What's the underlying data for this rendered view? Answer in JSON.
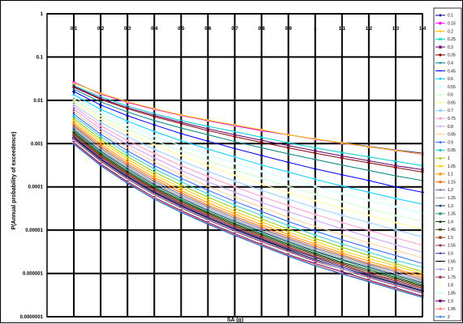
{
  "chart_data": {
    "type": "line",
    "xlabel": "SA (g)",
    "ylabel": "P(Annual probability of exceedence)",
    "x_scale": "linear",
    "y_scale": "log",
    "xlim": [
      0,
      1.4
    ],
    "ylim": [
      1e-07,
      1
    ],
    "x_ticks": [
      0.1,
      0.2,
      0.3,
      0.4,
      0.5,
      0.6,
      0.7,
      0.8,
      0.9,
      1,
      1.1,
      1.2,
      1.3,
      1.4
    ],
    "x_tick_labels": [
      "0.1",
      "0.2",
      "0.3",
      "0.4",
      "0.5",
      "0.6",
      "0.7",
      "0.8",
      "0.9",
      "1",
      "1.1",
      "1.2",
      "1.3",
      "1.4"
    ],
    "y_ticks": [
      1,
      0.1,
      0.01,
      0.001,
      0.0001,
      1e-05,
      1e-06,
      1e-07
    ],
    "y_tick_labels": [
      "1",
      "0.1",
      "0.01",
      "0.001",
      "0.0001",
      "0.00001",
      "0.000001",
      "0.0000001"
    ],
    "grid": true,
    "legend_position": "right",
    "x": [
      0.1,
      0.2,
      0.3,
      0.4,
      0.5,
      0.6,
      0.7,
      0.8,
      0.9,
      1.0,
      1.1,
      1.2,
      1.3,
      1.4
    ],
    "series": [
      {
        "name": "0.1",
        "color": "#000080",
        "marker": "diamond",
        "values": [
          0.026,
          0.014,
          0.009,
          0.0063,
          0.0045,
          0.0034,
          0.0026,
          0.002,
          0.0016,
          0.00128,
          0.00104,
          0.00086,
          0.00071,
          0.0006
        ]
      },
      {
        "name": "0.15",
        "color": "#ff00ff",
        "marker": "square",
        "values": [
          0.026,
          0.014,
          0.009,
          0.0062,
          0.0045,
          0.0034,
          0.0026,
          0.002,
          0.0016,
          0.00126,
          0.00102,
          0.00084,
          0.00069,
          0.00057
        ]
      },
      {
        "name": "0.2",
        "color": "#ffcc00",
        "marker": "triangle",
        "values": [
          0.025,
          0.0145,
          0.0093,
          0.0064,
          0.0046,
          0.0035,
          0.0027,
          0.0021,
          0.0016,
          0.00129,
          0.00104,
          0.00085,
          0.0007,
          0.00058
        ]
      },
      {
        "name": "0.25",
        "color": "#00cccc",
        "marker": "x",
        "values": [
          0.022,
          0.012,
          0.0074,
          0.0049,
          0.0034,
          0.0025,
          0.0019,
          0.0014,
          0.00105,
          0.0008,
          0.00062,
          0.00049,
          0.00039,
          0.00031
        ]
      },
      {
        "name": "0.3",
        "color": "#660066",
        "marker": "star",
        "values": [
          0.021,
          0.011,
          0.0068,
          0.0045,
          0.0031,
          0.0022,
          0.0016,
          0.0012,
          0.0009,
          0.00068,
          0.00052,
          0.0004,
          0.00031,
          0.00025
        ]
      },
      {
        "name": "0.35",
        "color": "#800000",
        "marker": "circle",
        "values": [
          0.02,
          0.0105,
          0.0064,
          0.0042,
          0.0029,
          0.002,
          0.00145,
          0.00107,
          0.0008,
          0.0006,
          0.00046,
          0.00036,
          0.00028,
          0.00022
        ]
      },
      {
        "name": "0.4",
        "color": "#008080",
        "marker": "plus",
        "values": [
          0.018,
          0.0092,
          0.0054,
          0.0034,
          0.0023,
          0.0016,
          0.00112,
          0.0008,
          0.00058,
          0.00043,
          0.00032,
          0.00024,
          0.00018,
          0.00014
        ]
      },
      {
        "name": "0.45",
        "color": "#0000ff",
        "marker": "dash",
        "values": [
          0.016,
          0.0078,
          0.0044,
          0.0027,
          0.0017,
          0.00114,
          0.00077,
          0.00053,
          0.00037,
          0.00026,
          0.00019,
          0.00014,
          0.0001,
          7.5e-05
        ]
      },
      {
        "name": "0.5",
        "color": "#00ccff",
        "marker": "diamond",
        "values": [
          0.0135,
          0.0062,
          0.0033,
          0.0019,
          0.00117,
          0.00075,
          0.00049,
          0.00032,
          0.00022,
          0.00015,
          0.000105,
          7.5e-05,
          5.4e-05,
          4e-05
        ]
      },
      {
        "name": "0.55",
        "color": "#ccffff",
        "marker": "square",
        "values": [
          0.012,
          0.0052,
          0.0027,
          0.0015,
          0.00089,
          0.00055,
          0.00035,
          0.00023,
          0.000152,
          0.000102,
          7e-05,
          4.9e-05,
          3.5e-05,
          2.5e-05
        ]
      },
      {
        "name": "0.6",
        "color": "#ccffcc",
        "marker": "triangle",
        "values": [
          0.0105,
          0.0044,
          0.0022,
          0.00118,
          0.00068,
          0.00041,
          0.00025,
          0.000159,
          0.000103,
          6.8e-05,
          4.6e-05,
          3.1e-05,
          2.2e-05,
          1.6e-05
        ]
      },
      {
        "name": "0.65",
        "color": "#ffff99",
        "marker": "x",
        "values": [
          0.0092,
          0.0037,
          0.0018,
          0.00094,
          0.00053,
          0.00031,
          0.000186,
          0.000116,
          7.4e-05,
          4.8e-05,
          3.2e-05,
          2.2e-05,
          1.5e-05,
          1.05e-05
        ]
      },
      {
        "name": "0.7",
        "color": "#99ccff",
        "marker": "star",
        "values": [
          0.008,
          0.0031,
          0.00145,
          0.00074,
          0.0004,
          0.00023,
          0.000136,
          8.3e-05,
          5.2e-05,
          3.3e-05,
          2.2e-05,
          1.5e-05,
          1.01e-05,
          7e-06
        ]
      },
      {
        "name": "0.75",
        "color": "#ff99cc",
        "marker": "circle",
        "values": [
          0.0071,
          0.0026,
          0.00118,
          0.00059,
          0.00031,
          0.000174,
          0.000101,
          6e-05,
          3.7e-05,
          2.3e-05,
          1.5e-05,
          9.9e-06,
          6.6e-06,
          4.5e-06
        ]
      },
      {
        "name": "0.8",
        "color": "#cc99ff",
        "marker": "plus",
        "values": [
          0.0062,
          0.0022,
          0.00096,
          0.00047,
          0.00024,
          0.000132,
          7.5e-05,
          4.4e-05,
          2.7e-05,
          1.7e-05,
          1.07e-05,
          7e-06,
          4.6e-06,
          3.1e-06
        ]
      },
      {
        "name": "0.85",
        "color": "#ffcc99",
        "marker": "dash",
        "values": [
          0.0055,
          0.0019,
          0.0008,
          0.00038,
          0.00019,
          0.000104,
          5.8e-05,
          3.4e-05,
          2e-05,
          1.23e-05,
          7.8e-06,
          5.1e-06,
          3.4e-06,
          2.3e-06
        ]
      },
      {
        "name": "0.9",
        "color": "#3366ff",
        "marker": "diamond",
        "values": [
          0.0048,
          0.00165,
          0.00068,
          0.00031,
          0.000158,
          8.4e-05,
          4.6e-05,
          2.7e-05,
          1.58e-05,
          9.6e-06,
          6e-06,
          3.9e-06,
          2.6e-06,
          1.7e-06
        ]
      },
      {
        "name": "0.95",
        "color": "#33cccc",
        "marker": "square",
        "values": [
          0.0043,
          0.00145,
          0.00058,
          0.00026,
          0.000131,
          6.9e-05,
          3.8e-05,
          2.2e-05,
          1.28e-05,
          7.7e-06,
          4.8e-06,
          3.1e-06,
          2e-06,
          1.4e-06
        ]
      },
      {
        "name": "1",
        "color": "#99cc00",
        "marker": "triangle",
        "values": [
          0.0038,
          0.00126,
          0.0005,
          0.00022,
          0.00011,
          5.8e-05,
          3.2e-05,
          1.82e-05,
          1.06e-05,
          6.4e-06,
          4e-06,
          2.6e-06,
          1.7e-06,
          1.1e-06
        ]
      },
      {
        "name": "1.05",
        "color": "#ffcc00",
        "marker": "x",
        "values": [
          0.0034,
          0.00112,
          0.00044,
          0.00019,
          9.5e-05,
          5e-05,
          2.7e-05,
          1.55e-05,
          9.1e-06,
          5.5e-06,
          3.4e-06,
          2.2e-06,
          1.5e-06,
          9.8e-07
        ]
      },
      {
        "name": "1.1",
        "color": "#ff9900",
        "marker": "star",
        "values": [
          0.003,
          0.00098,
          0.00038,
          0.000166,
          8.2e-05,
          4.3e-05,
          2.35e-05,
          1.34e-05,
          7.9e-06,
          4.8e-06,
          3e-06,
          1.9e-06,
          1.3e-06,
          8.6e-07
        ]
      },
      {
        "name": "1.15",
        "color": "#ff6600",
        "marker": "circle",
        "values": [
          0.0027,
          0.00088,
          0.00034,
          0.000148,
          7.3e-05,
          3.8e-05,
          2.1e-05,
          1.19e-05,
          7e-06,
          4.3e-06,
          2.7e-06,
          1.7e-06,
          1.2e-06,
          7.8e-07
        ]
      },
      {
        "name": "1.2",
        "color": "#666699",
        "marker": "plus",
        "values": [
          0.0025,
          0.0008,
          0.00031,
          0.000134,
          6.6e-05,
          3.5e-05,
          1.9e-05,
          1.08e-05,
          6.4e-06,
          3.9e-06,
          2.5e-06,
          1.6e-06,
          1.1e-06,
          7.1e-07
        ]
      },
      {
        "name": "1.25",
        "color": "#969696",
        "marker": "dash",
        "values": [
          0.0023,
          0.00073,
          0.00028,
          0.000122,
          6e-05,
          3.2e-05,
          1.74e-05,
          9.9e-06,
          5.9e-06,
          3.6e-06,
          2.3e-06,
          1.5e-06,
          9.8e-07,
          6.6e-07
        ]
      },
      {
        "name": "1.3",
        "color": "#003366",
        "marker": "diamond",
        "values": [
          0.0021,
          0.00067,
          0.00026,
          0.000112,
          5.5e-05,
          2.9e-05,
          1.6e-05,
          9.2e-06,
          5.4e-06,
          3.3e-06,
          2.1e-06,
          1.4e-06,
          9.1e-07,
          6.1e-07
        ]
      },
      {
        "name": "1.35",
        "color": "#339966",
        "marker": "square",
        "values": [
          0.00195,
          0.00062,
          0.00024,
          0.000104,
          5.1e-05,
          2.7e-05,
          1.49e-05,
          8.5e-06,
          5e-06,
          3.1e-06,
          2e-06,
          1.3e-06,
          8.5e-07,
          5.7e-07
        ]
      },
      {
        "name": "1.4",
        "color": "#003300",
        "marker": "triangle",
        "values": [
          0.00182,
          0.00058,
          0.000225,
          9.7e-05,
          4.8e-05,
          2.55e-05,
          1.4e-05,
          8e-06,
          4.7e-06,
          2.9e-06,
          1.8e-06,
          1.2e-06,
          8e-07,
          5.3e-07
        ]
      },
      {
        "name": "1.45",
        "color": "#333300",
        "marker": "x",
        "values": [
          0.0017,
          0.00054,
          0.00021,
          9.1e-05,
          4.5e-05,
          2.4e-05,
          1.31e-05,
          7.5e-06,
          4.4e-06,
          2.7e-06,
          1.7e-06,
          1.1e-06,
          7.5e-07,
          5e-07
        ]
      },
      {
        "name": "1.5",
        "color": "#993300",
        "marker": "star",
        "values": [
          0.0016,
          0.00051,
          0.000198,
          8.6e-05,
          4.2e-05,
          2.25e-05,
          1.23e-05,
          7e-06,
          4.1e-06,
          2.5e-06,
          1.6e-06,
          1e-06,
          7e-07,
          4.7e-07
        ]
      },
      {
        "name": "1.55",
        "color": "#993366",
        "marker": "circle",
        "values": [
          0.0015,
          0.00048,
          0.000187,
          8.1e-05,
          4e-05,
          2.12e-05,
          1.16e-05,
          6.6e-06,
          3.9e-06,
          2.4e-06,
          1.5e-06,
          9.8e-07,
          6.6e-07,
          4.4e-07
        ]
      },
      {
        "name": "1.6",
        "color": "#333399",
        "marker": "plus",
        "values": [
          0.00142,
          0.00045,
          0.000176,
          7.7e-05,
          3.8e-05,
          2e-05,
          1.1e-05,
          6.3e-06,
          3.7e-06,
          2.3e-06,
          1.4e-06,
          9.3e-07,
          6.2e-07,
          4.1e-07
        ]
      },
      {
        "name": "1.65",
        "color": "#000000",
        "marker": "dash",
        "values": [
          0.00135,
          0.00043,
          0.000167,
          7.3e-05,
          3.6e-05,
          1.9e-05,
          1.04e-05,
          6e-06,
          3.5e-06,
          2.1e-06,
          1.3e-06,
          8.8e-07,
          5.9e-07,
          3.9e-07
        ]
      },
      {
        "name": "1.7",
        "color": "#9999ff",
        "marker": "diamond",
        "values": [
          0.00128,
          0.00041,
          0.000159,
          6.9e-05,
          3.4e-05,
          1.81e-05,
          9.9e-06,
          5.7e-06,
          3.3e-06,
          2e-06,
          1.3e-06,
          8.4e-07,
          5.6e-07,
          3.7e-07
        ]
      },
      {
        "name": "1.75",
        "color": "#993366",
        "marker": "square",
        "values": [
          0.00122,
          0.00039,
          0.000151,
          6.6e-05,
          3.25e-05,
          1.72e-05,
          9.4e-06,
          5.4e-06,
          3.2e-06,
          1.9e-06,
          1.2e-06,
          8e-07,
          5.3e-07,
          3.5e-07
        ]
      },
      {
        "name": "1.8",
        "color": "#ffffcc",
        "marker": "triangle",
        "values": [
          0.00116,
          0.00037,
          0.000144,
          6.3e-05,
          3.1e-05,
          1.64e-05,
          9e-06,
          5.1e-06,
          3e-06,
          1.8e-06,
          1.2e-06,
          7.6e-07,
          5e-07,
          3.3e-07
        ]
      },
      {
        "name": "1.85",
        "color": "#ccffff",
        "marker": "x",
        "values": [
          0.00111,
          0.00035,
          0.000137,
          6e-05,
          2.95e-05,
          1.57e-05,
          8.6e-06,
          4.9e-06,
          2.9e-06,
          1.7e-06,
          1.1e-06,
          7.3e-07,
          4.8e-07,
          3.2e-07
        ]
      },
      {
        "name": "1.9",
        "color": "#660066",
        "marker": "star",
        "values": [
          0.00106,
          0.00034,
          0.000131,
          5.7e-05,
          2.82e-05,
          1.5e-05,
          8.2e-06,
          4.7e-06,
          2.7e-06,
          1.7e-06,
          1.1e-06,
          7e-07,
          4.6e-07,
          3e-07
        ]
      },
      {
        "name": "1.95",
        "color": "#ff8080",
        "marker": "circle",
        "values": [
          0.00101,
          0.00032,
          0.000125,
          5.5e-05,
          2.7e-05,
          1.43e-05,
          7.8e-06,
          4.5e-06,
          2.6e-06,
          1.6e-06,
          1e-06,
          6.7e-07,
          4.4e-07,
          2.9e-07
        ]
      },
      {
        "name": "2",
        "color": "#0066cc",
        "marker": "plus",
        "values": [
          0.00097,
          0.00031,
          0.00012,
          5.2e-05,
          2.58e-05,
          1.37e-05,
          7.5e-06,
          4.3e-06,
          2.5e-06,
          1.5e-06,
          9.7e-07,
          6.4e-07,
          4.2e-07,
          2.8e-07
        ]
      }
    ]
  }
}
